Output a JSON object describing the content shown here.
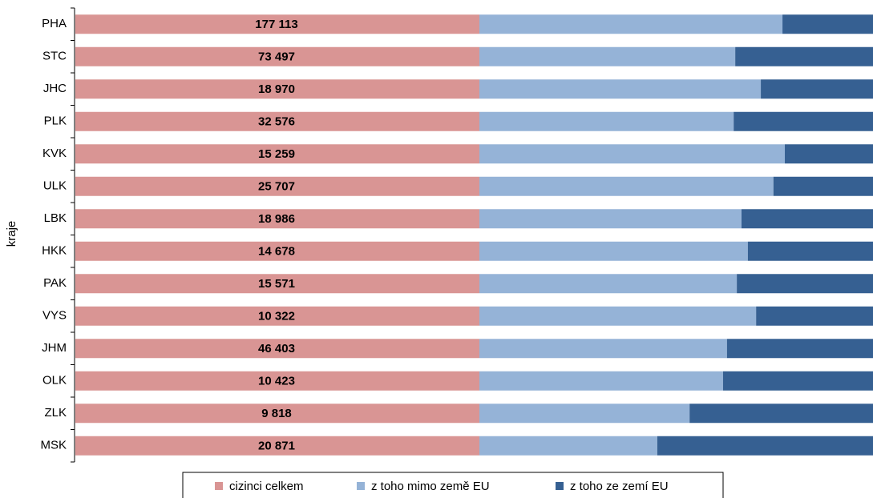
{
  "chart_data": {
    "type": "bar",
    "orientation": "horizontal",
    "y_label": "kraje",
    "categories": [
      "PHA",
      "STC",
      "JHC",
      "PLK",
      "KVK",
      "ULK",
      "LBK",
      "HKK",
      "PAK",
      "VYS",
      "JHM",
      "OLK",
      "ZLK",
      "MSK"
    ],
    "series": [
      {
        "name": "cizinci celkem",
        "color": "#d99594",
        "values": [
          177113,
          73497,
          18970,
          32576,
          15259,
          25707,
          18986,
          14678,
          15571,
          10322,
          46403,
          10423,
          9818,
          20871
        ],
        "value_labels": [
          "177 113",
          "73 497",
          "18 970",
          "32 576",
          "15 259",
          "25 707",
          "18 986",
          "14 678",
          "15 571",
          "10 322",
          "46 403",
          "10 423",
          "9 818",
          "20 871"
        ]
      },
      {
        "name": "z toho mimo země EU",
        "color": "#95b3d7",
        "values": [
          77.0,
          65.0,
          71.5,
          64.6,
          77.6,
          74.7,
          66.6,
          68.2,
          65.4,
          70.3,
          62.9,
          61.9,
          53.4,
          45.2
        ]
      },
      {
        "name": "z toho ze zemí EU",
        "color": "#366092",
        "values": [
          23.0,
          35.0,
          28.5,
          35.4,
          22.4,
          25.3,
          33.4,
          31.8,
          34.6,
          29.7,
          37.1,
          38.1,
          46.6,
          54.8
        ]
      }
    ],
    "xlim": [
      0,
      100
    ]
  }
}
